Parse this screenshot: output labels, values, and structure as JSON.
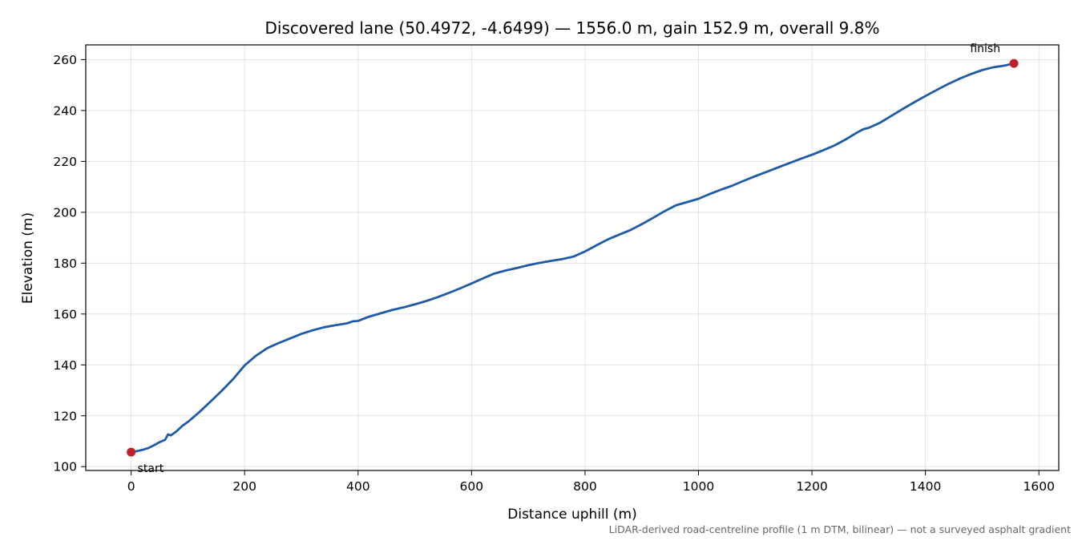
{
  "chart_data": {
    "type": "line",
    "title": "Discovered lane (50.4972, -4.6499) — 1556.0 m, gain 152.9 m, overall 9.8%",
    "xlabel": "Distance uphill (m)",
    "ylabel": "Elevation (m)",
    "xlim": [
      -80,
      1635
    ],
    "ylim": [
      98.5,
      265.8
    ],
    "x_ticks": [
      0,
      200,
      400,
      600,
      800,
      1000,
      1200,
      1400,
      1600
    ],
    "y_ticks": [
      100,
      120,
      140,
      160,
      180,
      200,
      220,
      240,
      260
    ],
    "grid": true,
    "series": [
      {
        "color": "#1f5aa8",
        "x": [
          0,
          10,
          20,
          30,
          40,
          50,
          60,
          65,
          70,
          80,
          90,
          100,
          120,
          140,
          160,
          180,
          200,
          220,
          240,
          260,
          280,
          300,
          320,
          340,
          360,
          380,
          390,
          400,
          420,
          440,
          460,
          480,
          500,
          520,
          540,
          560,
          580,
          600,
          620,
          640,
          660,
          680,
          700,
          720,
          740,
          760,
          780,
          800,
          820,
          840,
          860,
          880,
          900,
          920,
          940,
          960,
          980,
          1000,
          1020,
          1040,
          1060,
          1080,
          1100,
          1120,
          1140,
          1160,
          1180,
          1200,
          1220,
          1240,
          1260,
          1280,
          1290,
          1300,
          1320,
          1340,
          1360,
          1380,
          1400,
          1420,
          1440,
          1460,
          1480,
          1500,
          1520,
          1540,
          1556
        ],
        "y": [
          105.7,
          106.1,
          106.6,
          107.3,
          108.4,
          109.6,
          110.6,
          112.7,
          112.3,
          113.9,
          116.0,
          117.6,
          121.4,
          125.6,
          129.9,
          134.5,
          139.8,
          143.6,
          146.6,
          148.6,
          150.4,
          152.2,
          153.6,
          154.8,
          155.6,
          156.3,
          157.1,
          157.3,
          159.0,
          160.3,
          161.6,
          162.6,
          163.8,
          165.1,
          166.6,
          168.3,
          170.1,
          172.0,
          174.0,
          175.9,
          177.1,
          178.1,
          179.2,
          180.1,
          180.9,
          181.6,
          182.6,
          184.6,
          187.0,
          189.3,
          191.2,
          193.0,
          195.3,
          197.8,
          200.4,
          202.7,
          204.0,
          205.3,
          207.2,
          208.9,
          210.5,
          212.4,
          214.2,
          215.9,
          217.6,
          219.3,
          221.0,
          222.6,
          224.4,
          226.3,
          228.7,
          231.4,
          232.6,
          233.2,
          235.2,
          237.9,
          240.6,
          243.2,
          245.7,
          248.1,
          250.4,
          252.5,
          254.3,
          255.9,
          257.0,
          257.7,
          258.5
        ]
      }
    ],
    "annotations": [
      {
        "text": "start",
        "x": 0,
        "y": 105.7
      },
      {
        "text": "finish",
        "x": 1556,
        "y": 258.5
      }
    ],
    "footnote": "LiDAR-derived road-centreline profile (1 m DTM, bilinear) — not a surveyed asphalt gradient"
  }
}
